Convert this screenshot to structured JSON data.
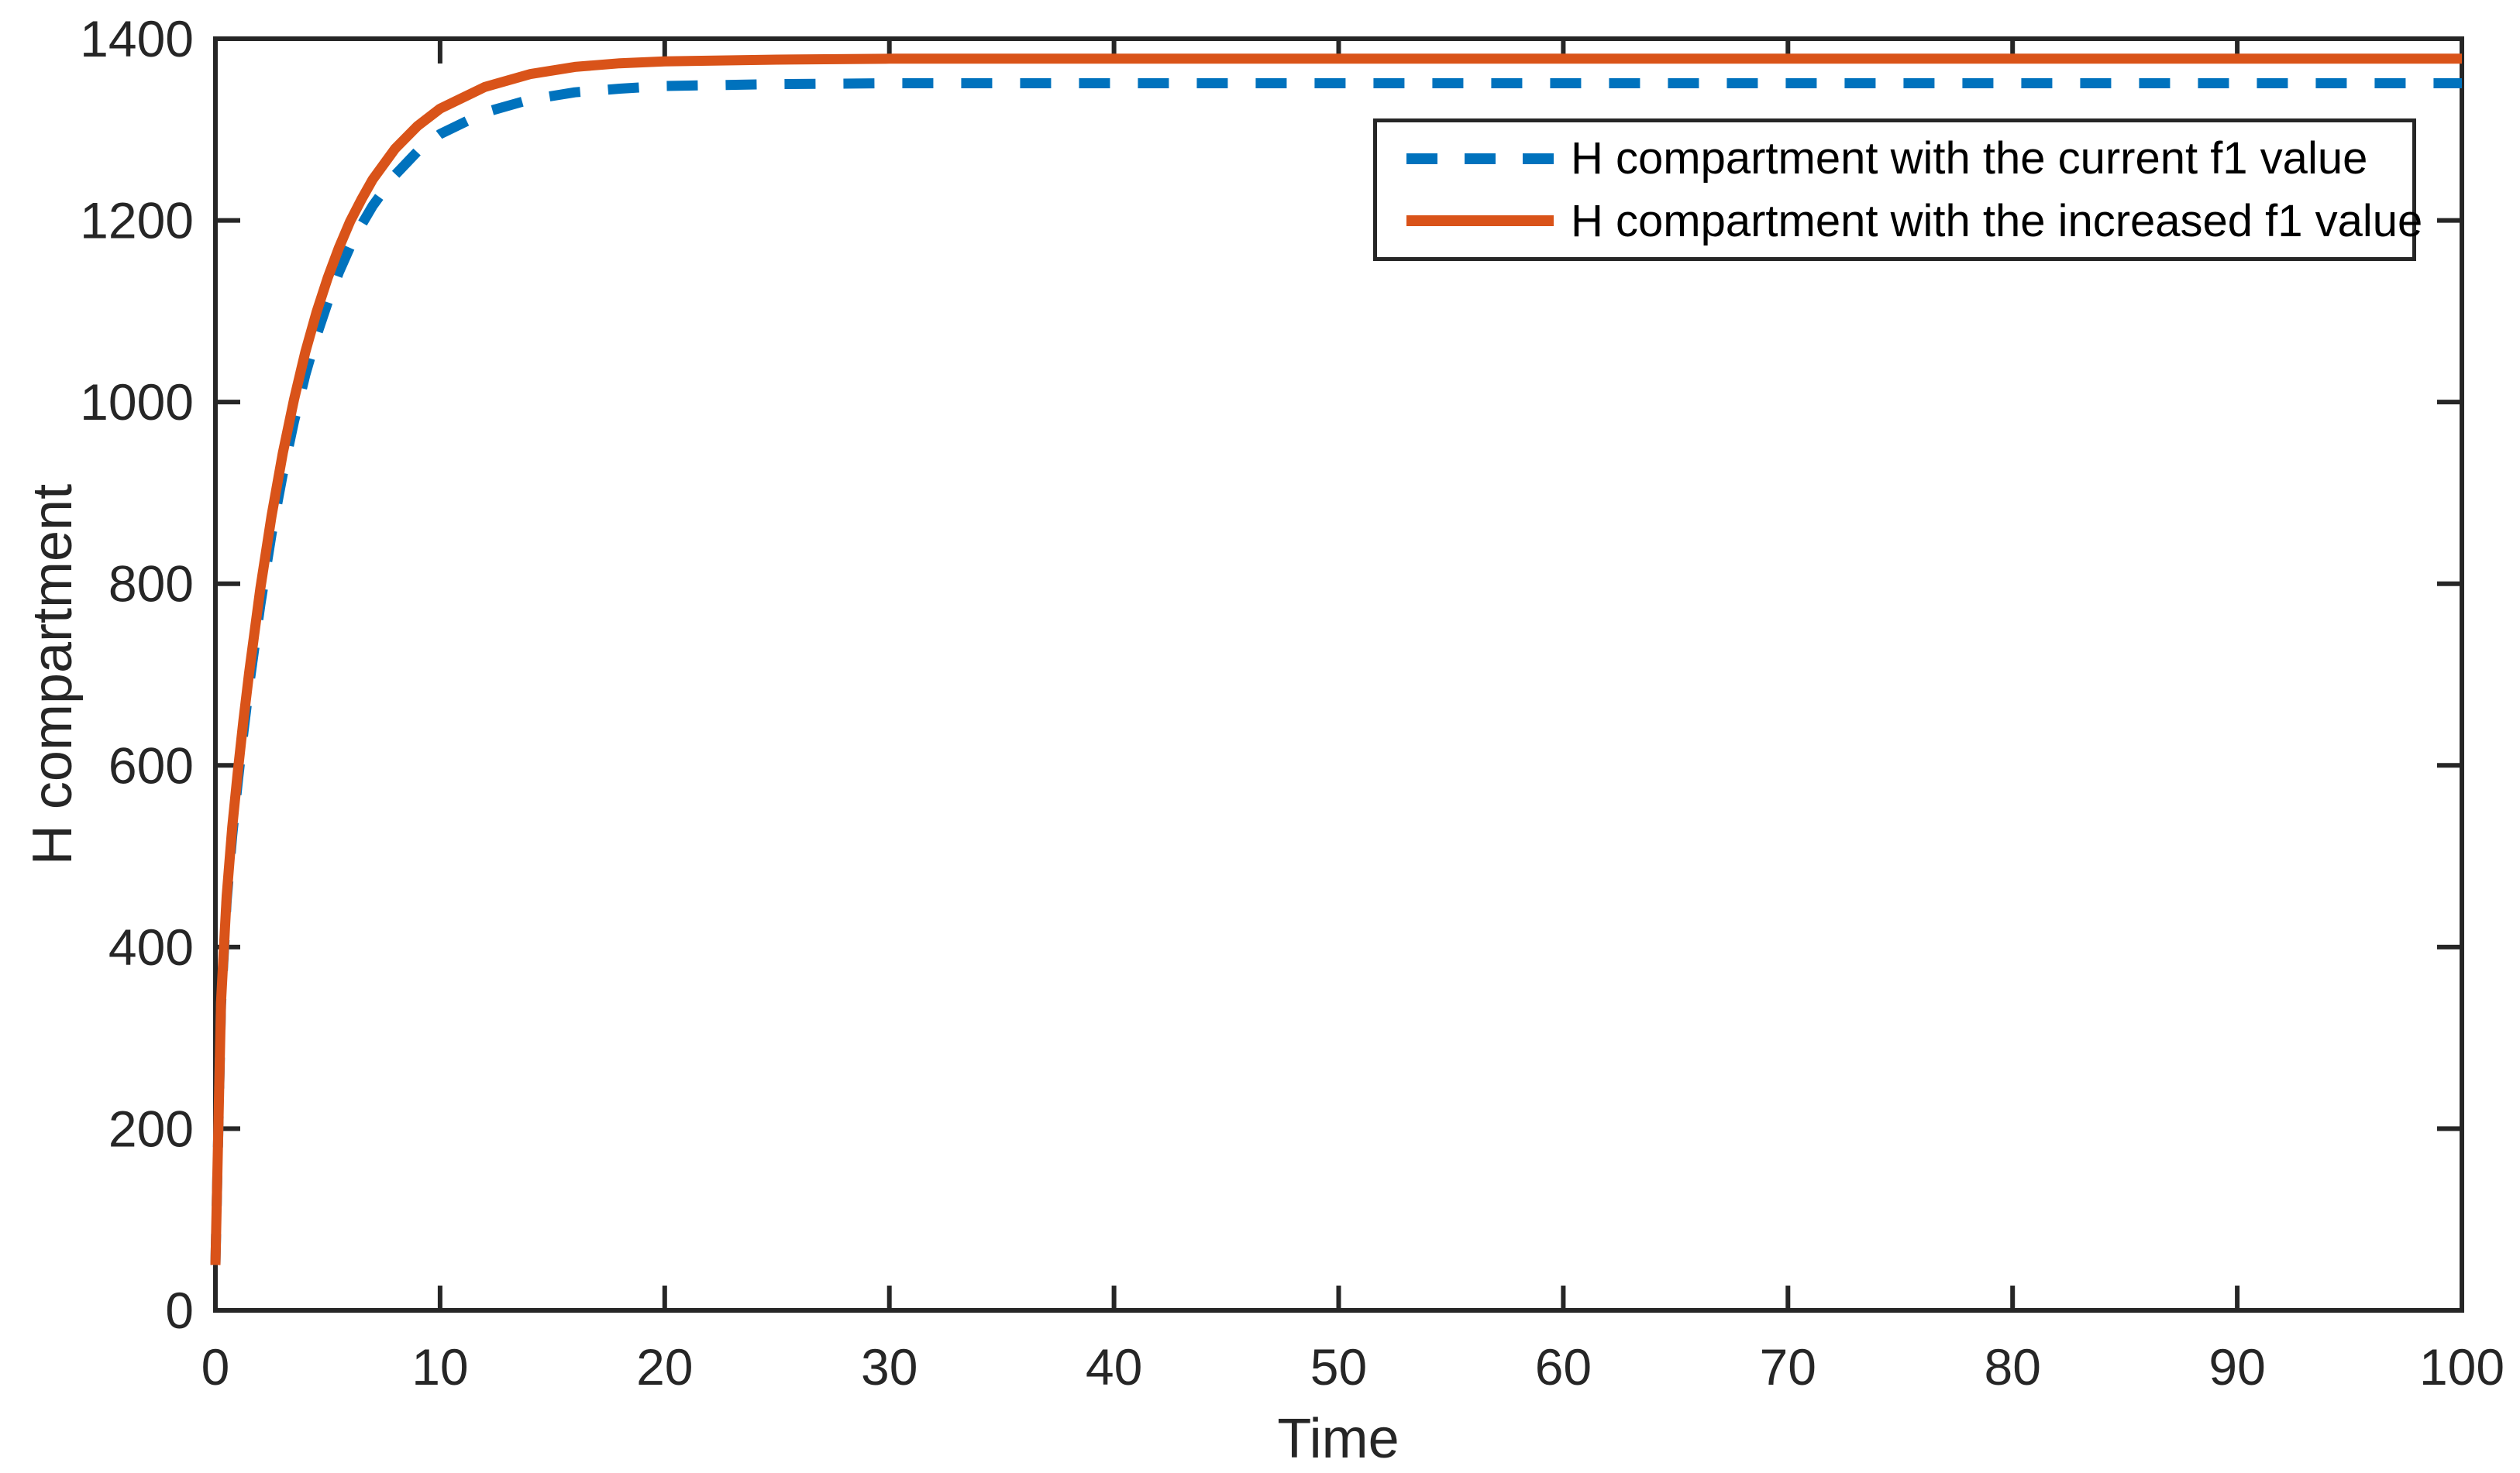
{
  "figure": {
    "background": "#ffffff",
    "axes_color": "#262626"
  },
  "chart_data": {
    "type": "line",
    "title": "",
    "xlabel": "Time",
    "ylabel": "H compartment",
    "xlim": [
      0,
      100
    ],
    "ylim": [
      0,
      1400
    ],
    "xticks": [
      0,
      10,
      20,
      30,
      40,
      50,
      60,
      70,
      80,
      90,
      100
    ],
    "yticks": [
      0,
      200,
      400,
      600,
      800,
      1000,
      1200,
      1400
    ],
    "grid": false,
    "legend_position": "northeast",
    "x": [
      0,
      0.25,
      0.5,
      0.75,
      1,
      1.25,
      1.5,
      2,
      2.5,
      3,
      3.5,
      4,
      4.5,
      5,
      5.5,
      6,
      6.5,
      7,
      8,
      9,
      10,
      12,
      14,
      16,
      18,
      20,
      25,
      30,
      40,
      50,
      60,
      70,
      80,
      90,
      100
    ],
    "series": [
      {
        "name": "H compartment with the current f1 value",
        "color": "#0072BD",
        "style": "dashed",
        "line_width": 13,
        "steady_state": 1351,
        "values": [
          50,
          336,
          451,
          523,
          583,
          637,
          688,
          777,
          855,
          921,
          979,
          1030,
          1073,
          1110,
          1143,
          1171,
          1195,
          1216,
          1250,
          1276,
          1295,
          1319,
          1333,
          1341,
          1345,
          1348,
          1350,
          1351,
          1351,
          1351,
          1351,
          1351,
          1351,
          1351,
          1351
        ]
      },
      {
        "name": "H compartment with the increased f1 value",
        "color": "#D95319",
        "style": "solid",
        "line_width": 13,
        "steady_state": 1378,
        "values": [
          50,
          339,
          456,
          532,
          594,
          650,
          702,
          795,
          875,
          944,
          1003,
          1055,
          1099,
          1137,
          1170,
          1199,
          1223,
          1245,
          1279,
          1304,
          1323,
          1347,
          1361,
          1369,
          1373,
          1375,
          1377,
          1378,
          1378,
          1378,
          1378,
          1378,
          1378,
          1378,
          1378
        ]
      }
    ]
  }
}
